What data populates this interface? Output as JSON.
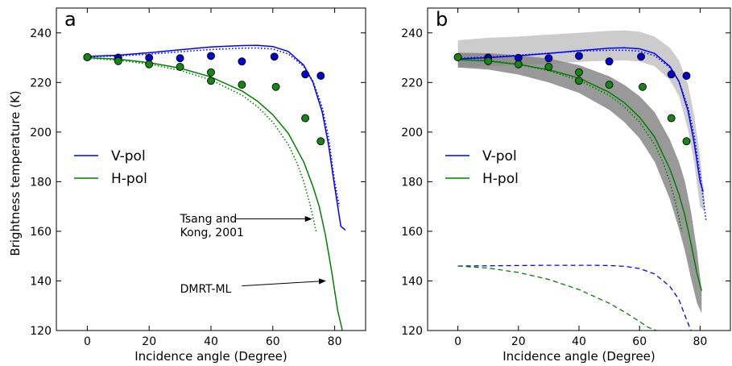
{
  "figure": {
    "y_axis_label": "Brightness temperature (K)"
  },
  "colors": {
    "v_pol": "#0000ff",
    "h_pol": "#008000",
    "v_marker_fill": "#0000cc",
    "h_marker_fill": "#118811",
    "band": "#808080"
  },
  "chart_data": [
    {
      "type": "line",
      "panel_letter": "a",
      "xlabel": "Incidence angle (Degree)",
      "ylabel": "Brightness temperature (K)",
      "xlim": [
        -10,
        90
      ],
      "ylim": [
        120,
        250
      ],
      "x_ticks": [
        0,
        20,
        40,
        60,
        80
      ],
      "y_ticks": [
        120,
        140,
        160,
        180,
        200,
        220,
        240
      ],
      "legend": {
        "position": "center-left",
        "entries": [
          {
            "label": "V-pol",
            "color": "v_pol"
          },
          {
            "label": "H-pol",
            "color": "h_pol"
          }
        ]
      },
      "series": [
        {
          "label": "V-pol",
          "style": "solid",
          "color": "v_pol",
          "x": [
            0,
            10,
            20,
            30,
            40,
            50,
            55,
            60,
            65,
            70,
            73,
            76,
            78,
            80,
            82,
            83.5
          ],
          "y": [
            230.5,
            231.0,
            232.0,
            233.2,
            234.3,
            234.9,
            235.0,
            234.5,
            232.5,
            227.0,
            220.0,
            208.0,
            195.0,
            178.0,
            162.0,
            160.5
          ]
        },
        {
          "label": "H-pol",
          "style": "solid",
          "color": "h_pol",
          "x": [
            0,
            10,
            20,
            30,
            40,
            50,
            55,
            60,
            65,
            70,
            73,
            75,
            77,
            79,
            81,
            82.5
          ],
          "y": [
            230.0,
            229.4,
            228.0,
            225.8,
            222.2,
            216.6,
            212.5,
            207.0,
            199.5,
            188.0,
            178.0,
            170.0,
            158.5,
            144.0,
            128.0,
            120.0
          ]
        },
        {
          "label": "V-pol Tsang and Kong, 2001",
          "style": "dotted",
          "color": "v_pol",
          "x": [
            0,
            10,
            20,
            30,
            40,
            50,
            55,
            60,
            65,
            70,
            73,
            76,
            78,
            80,
            81.5
          ],
          "y": [
            230.3,
            230.7,
            231.4,
            232.4,
            233.3,
            233.8,
            233.9,
            233.5,
            231.5,
            226.5,
            220.5,
            210.0,
            198.0,
            180.0,
            170.0
          ]
        },
        {
          "label": "H-pol Tsang and Kong, 2001",
          "style": "dotted",
          "color": "h_pol",
          "x": [
            0,
            10,
            20,
            30,
            40,
            50,
            55,
            60,
            65,
            68,
            70,
            72,
            74
          ],
          "y": [
            229.8,
            229.0,
            227.4,
            224.9,
            221.0,
            214.9,
            210.3,
            204.0,
            195.0,
            187.0,
            180.0,
            171.0,
            160.0
          ]
        }
      ],
      "measurements": [
        {
          "polarization": "V",
          "color": "v_marker_fill",
          "x": [
            0,
            10,
            20,
            30,
            40,
            50,
            60.5,
            70.5,
            75.5
          ],
          "y": [
            230.2,
            230.0,
            229.9,
            229.8,
            230.7,
            228.5,
            230.4,
            223.3,
            222.7
          ]
        },
        {
          "polarization": "H",
          "color": "h_marker_fill",
          "x": [
            0,
            10,
            20,
            30,
            40,
            40,
            50,
            61,
            70.5,
            75.5
          ],
          "y": [
            230.2,
            228.6,
            227.3,
            226.3,
            224.1,
            220.7,
            219.1,
            218.2,
            205.6,
            196.3
          ]
        }
      ],
      "annotations": [
        {
          "lines": [
            "Tsang and",
            "Kong, 2001"
          ],
          "text_x": 30,
          "text_y": 163.5,
          "arrow_from": [
            48,
            165
          ],
          "arrow_to": [
            72.5,
            165
          ]
        },
        {
          "lines": [
            "DMRT-ML"
          ],
          "text_x": 30,
          "text_y": 135.2,
          "arrow_from": [
            50,
            138
          ],
          "arrow_to": [
            77,
            140
          ]
        }
      ]
    },
    {
      "type": "line",
      "panel_letter": "b",
      "xlabel": "Incidence angle (Degree)",
      "ylabel": "",
      "xlim": [
        -10,
        90
      ],
      "ylim": [
        120,
        250
      ],
      "x_ticks": [
        0,
        20,
        40,
        60,
        80
      ],
      "y_ticks": [
        120,
        140,
        160,
        180,
        200,
        220,
        240
      ],
      "legend": {
        "position": "center-left",
        "entries": [
          {
            "label": "V-pol",
            "color": "v_pol"
          },
          {
            "label": "H-pol",
            "color": "h_pol"
          }
        ]
      },
      "bands": [
        {
          "polarization": "V",
          "color": "band",
          "opacity": 0.4,
          "x": [
            0,
            10,
            20,
            30,
            40,
            50,
            55,
            60,
            65,
            70,
            73,
            76,
            78,
            80,
            81.5
          ],
          "upper": [
            237.0,
            238.0,
            238.5,
            239.3,
            240.0,
            240.8,
            241.0,
            240.5,
            238.5,
            234.0,
            229.0,
            219.0,
            207.0,
            190.0,
            172.0
          ],
          "lower": [
            226.0,
            226.5,
            227.0,
            227.6,
            228.3,
            228.8,
            228.9,
            228.5,
            226.5,
            221.0,
            214.5,
            201.0,
            188.0,
            170.0,
            168.0
          ]
        },
        {
          "polarization": "H",
          "color": "band",
          "opacity": 0.8,
          "x": [
            0,
            10,
            20,
            30,
            40,
            50,
            55,
            60,
            65,
            70,
            73,
            75,
            77,
            79,
            80.5
          ],
          "upper": [
            232.0,
            231.8,
            231.0,
            229.6,
            227.0,
            222.5,
            219.0,
            214.5,
            208.0,
            197.0,
            188.0,
            180.0,
            168.0,
            152.0,
            136.0
          ],
          "lower": [
            226.0,
            225.2,
            223.2,
            220.0,
            215.8,
            209.0,
            204.0,
            197.5,
            188.0,
            173.0,
            161.0,
            152.0,
            141.0,
            131.0,
            127.0
          ]
        }
      ],
      "series": [
        {
          "label": "V-pol",
          "style": "solid",
          "color": "v_pol",
          "x": [
            0,
            10,
            20,
            30,
            40,
            50,
            55,
            60,
            65,
            70,
            73,
            76,
            78,
            80,
            81
          ],
          "y": [
            229.5,
            230.0,
            230.8,
            231.7,
            232.8,
            233.8,
            234.0,
            233.6,
            231.7,
            226.5,
            220.5,
            208.5,
            196.0,
            180.0,
            176.0
          ]
        },
        {
          "label": "H-pol",
          "style": "solid",
          "color": "h_pol",
          "x": [
            0,
            10,
            20,
            30,
            40,
            50,
            55,
            60,
            65,
            70,
            73,
            75,
            77,
            79,
            80.5
          ],
          "y": [
            229.2,
            228.6,
            227.3,
            225.1,
            221.8,
            216.0,
            211.8,
            206.0,
            198.0,
            185.2,
            175.0,
            166.3,
            155.0,
            143.0,
            136.0
          ]
        },
        {
          "label": "V-pol dotted",
          "style": "dotted",
          "color": "v_pol",
          "x": [
            0,
            10,
            20,
            30,
            40,
            50,
            55,
            60,
            65,
            70,
            73,
            76,
            78,
            80,
            82
          ],
          "y": [
            229.8,
            230.2,
            231.0,
            231.8,
            232.6,
            233.0,
            233.0,
            232.6,
            230.8,
            226.0,
            220.5,
            210.0,
            199.0,
            183.0,
            164.0
          ]
        },
        {
          "label": "H-pol dotted",
          "style": "dotted",
          "color": "h_pol",
          "x": [
            0,
            10,
            20,
            30,
            40,
            50,
            55,
            60,
            65,
            68,
            70,
            72,
            74
          ],
          "y": [
            229.5,
            228.9,
            227.3,
            224.7,
            220.9,
            214.8,
            210.2,
            204.0,
            195.0,
            187.0,
            180.0,
            171.0,
            160.0
          ]
        },
        {
          "label": "V-pol dashed",
          "style": "dashed",
          "color": "v_pol",
          "x": [
            0,
            10,
            20,
            30,
            40,
            45,
            50,
            55,
            60,
            65,
            70,
            73,
            75,
            77
          ],
          "y": [
            146.0,
            146.1,
            146.2,
            146.3,
            146.3,
            146.3,
            146.2,
            145.9,
            145.0,
            142.8,
            137.8,
            132.5,
            126.0,
            120.0
          ]
        },
        {
          "label": "H-pol dashed",
          "style": "dashed",
          "color": "h_pol",
          "x": [
            0,
            10,
            20,
            30,
            40,
            50,
            55,
            60,
            63,
            65.5
          ],
          "y": [
            146.0,
            145.2,
            143.4,
            140.6,
            136.5,
            131.0,
            127.5,
            123.6,
            121.2,
            120.0
          ]
        }
      ],
      "measurements": [
        {
          "polarization": "V",
          "color": "v_marker_fill",
          "x": [
            0,
            10,
            20,
            30,
            40,
            50,
            60.5,
            70.5,
            75.5
          ],
          "y": [
            230.2,
            230.0,
            229.9,
            229.8,
            230.7,
            228.5,
            230.4,
            223.3,
            222.7
          ]
        },
        {
          "polarization": "H",
          "color": "h_marker_fill",
          "x": [
            0,
            10,
            20,
            30,
            40,
            40,
            50,
            61,
            70.5,
            75.5
          ],
          "y": [
            230.2,
            228.6,
            227.3,
            226.3,
            224.1,
            220.7,
            219.1,
            218.2,
            205.6,
            196.3
          ]
        }
      ],
      "annotations": []
    }
  ]
}
